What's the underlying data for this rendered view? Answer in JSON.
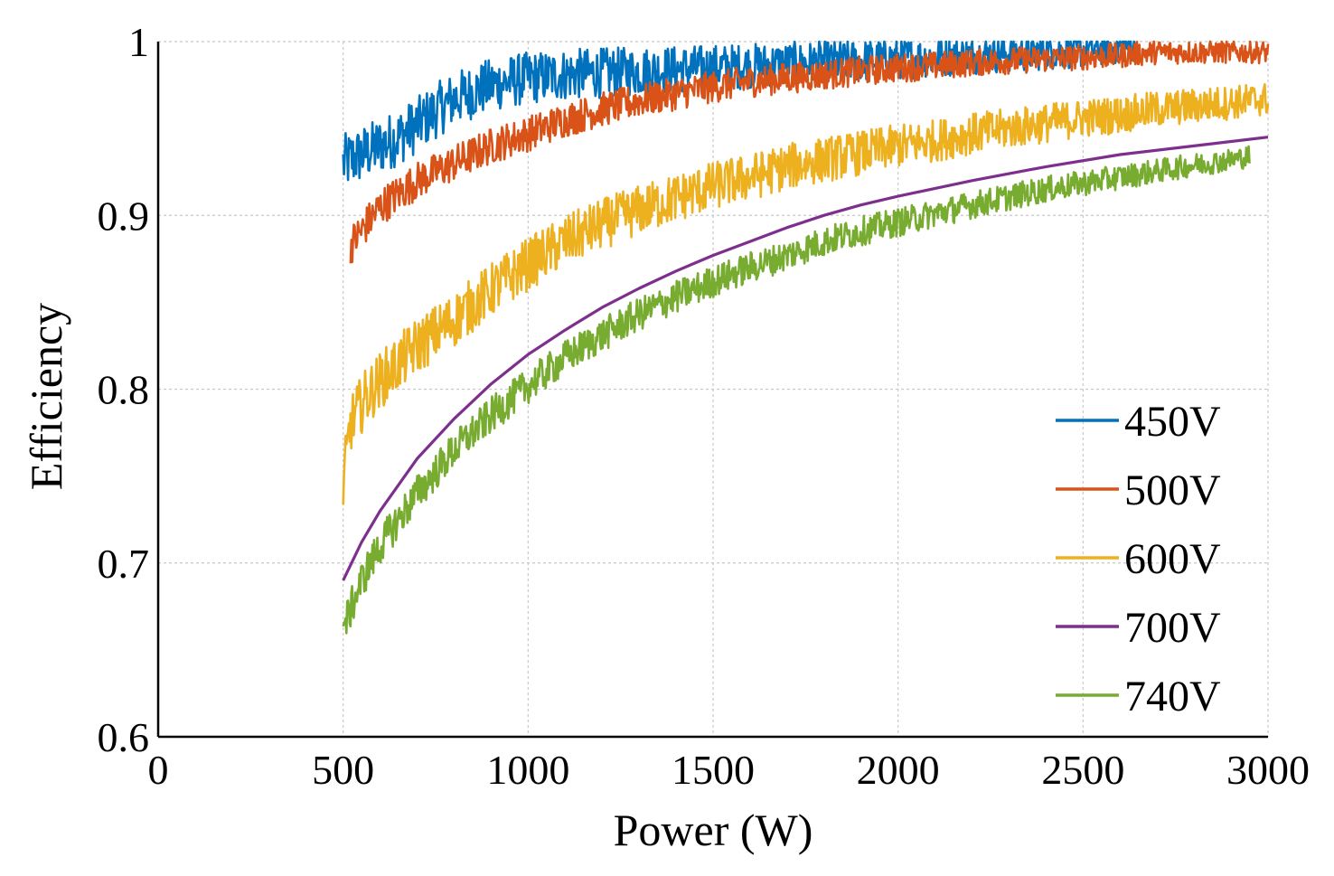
{
  "chart_data": {
    "type": "line",
    "title": "",
    "xlabel": "Power (W)",
    "ylabel": "Efficiency",
    "xlim": [
      0,
      3000
    ],
    "ylim": [
      0.6,
      1.0
    ],
    "xticks": [
      0,
      500,
      1000,
      1500,
      2000,
      2500,
      3000
    ],
    "xtick_labels": [
      "0",
      "500",
      "1000",
      "1500",
      "2000",
      "2500",
      "3000"
    ],
    "yticks": [
      0.6,
      0.7,
      0.8,
      0.9,
      1.0
    ],
    "ytick_labels": [
      "0.6",
      "0.7",
      "0.8",
      "0.9",
      "1"
    ],
    "grid": true,
    "legend_position": "bottom-right",
    "series": [
      {
        "name": "450V",
        "color": "#0072BD",
        "noise": 0.012,
        "x": [
          500,
          550,
          600,
          650,
          700,
          750,
          800,
          900,
          1000,
          1100,
          1200,
          1300,
          1400,
          1500,
          1600,
          1700,
          1800,
          1900,
          2000,
          2100,
          2200,
          2300,
          2400,
          2500,
          2600,
          2640
        ],
        "y": [
          0.93,
          0.935,
          0.94,
          0.945,
          0.952,
          0.96,
          0.967,
          0.975,
          0.979,
          0.981,
          0.982,
          0.983,
          0.984,
          0.985,
          0.986,
          0.987,
          0.988,
          0.989,
          0.99,
          0.991,
          0.992,
          0.993,
          0.994,
          0.995,
          0.997,
          0.998
        ]
      },
      {
        "name": "500V",
        "color": "#D95319",
        "noise": 0.008,
        "x": [
          520,
          600,
          700,
          800,
          900,
          1000,
          1100,
          1200,
          1300,
          1400,
          1500,
          1600,
          1700,
          1800,
          1900,
          2000,
          2100,
          2200,
          2300,
          2400,
          2500,
          2600,
          2650,
          2700,
          2800,
          2900,
          3000
        ],
        "y": [
          0.883,
          0.905,
          0.92,
          0.93,
          0.94,
          0.947,
          0.955,
          0.961,
          0.966,
          0.97,
          0.974,
          0.977,
          0.979,
          0.981,
          0.983,
          0.985,
          0.986,
          0.988,
          0.989,
          0.99,
          0.991,
          0.992,
          0.993,
          0.994,
          0.994,
          0.994,
          0.994
        ]
      },
      {
        "name": "600V",
        "color": "#EDB120",
        "noise": 0.012,
        "x": [
          500,
          520,
          560,
          600,
          650,
          700,
          800,
          900,
          1000,
          1100,
          1200,
          1300,
          1400,
          1500,
          1600,
          1700,
          1800,
          1900,
          2000,
          2100,
          2200,
          2300,
          2400,
          2500,
          2600,
          2700,
          2800,
          2900,
          3000
        ],
        "y": [
          0.745,
          0.78,
          0.795,
          0.805,
          0.815,
          0.825,
          0.84,
          0.857,
          0.872,
          0.885,
          0.895,
          0.903,
          0.91,
          0.917,
          0.922,
          0.928,
          0.932,
          0.936,
          0.94,
          0.943,
          0.947,
          0.95,
          0.953,
          0.956,
          0.958,
          0.961,
          0.963,
          0.965,
          0.967
        ]
      },
      {
        "name": "700V",
        "color": "#7E2F8E",
        "noise": 0,
        "x": [
          500,
          550,
          600,
          700,
          800,
          900,
          1000,
          1100,
          1200,
          1300,
          1400,
          1500,
          1600,
          1700,
          1800,
          1900,
          2000,
          2200,
          2400,
          2600,
          2800,
          3000
        ],
        "y": [
          0.69,
          0.712,
          0.73,
          0.76,
          0.783,
          0.803,
          0.82,
          0.834,
          0.847,
          0.858,
          0.868,
          0.877,
          0.885,
          0.893,
          0.9,
          0.906,
          0.911,
          0.92,
          0.928,
          0.935,
          0.94,
          0.945
        ]
      },
      {
        "name": "740V",
        "color": "#77AC30",
        "noise": 0.008,
        "x": [
          500,
          550,
          600,
          700,
          800,
          900,
          1000,
          1100,
          1200,
          1300,
          1400,
          1500,
          1600,
          1700,
          1800,
          1900,
          2000,
          2200,
          2400,
          2600,
          2800,
          2900,
          2950
        ],
        "y": [
          0.662,
          0.69,
          0.71,
          0.74,
          0.765,
          0.785,
          0.802,
          0.818,
          0.831,
          0.843,
          0.853,
          0.862,
          0.87,
          0.877,
          0.885,
          0.891,
          0.896,
          0.906,
          0.915,
          0.922,
          0.929,
          0.932,
          0.934
        ]
      }
    ]
  }
}
